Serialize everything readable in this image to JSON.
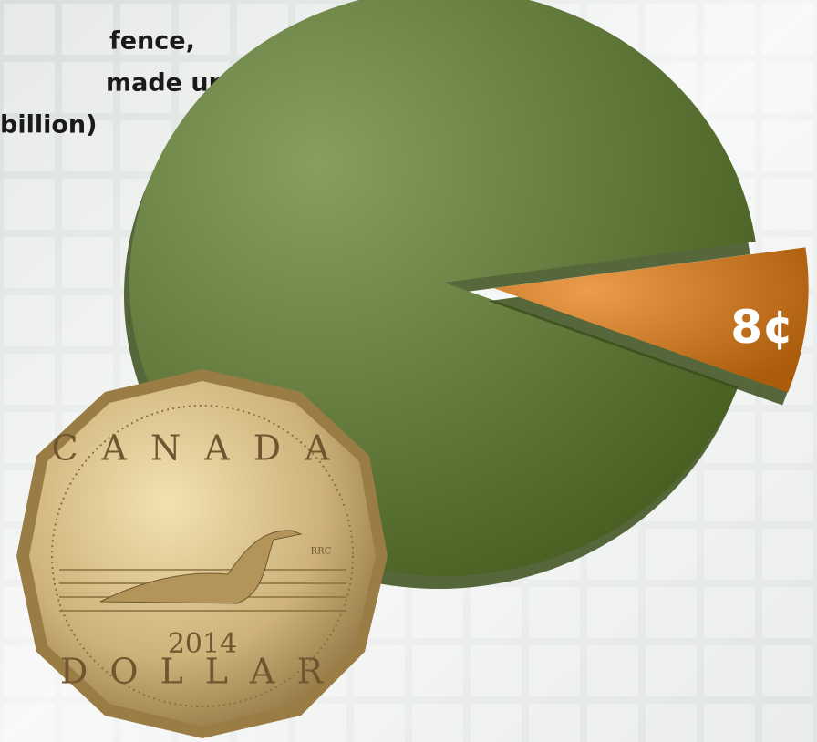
{
  "chart_data": {
    "type": "pie",
    "annotations": [
      "fence,",
      "made up",
      "billion)"
    ],
    "values": [
      92,
      8
    ],
    "value_labels": [
      null,
      "8¢"
    ],
    "colors": [
      "#5f7e2c",
      "#e57c10"
    ]
  },
  "coin": {
    "country": "CANADA",
    "denomination": "DOLLAR",
    "year": "2014",
    "initials": "RRC"
  }
}
